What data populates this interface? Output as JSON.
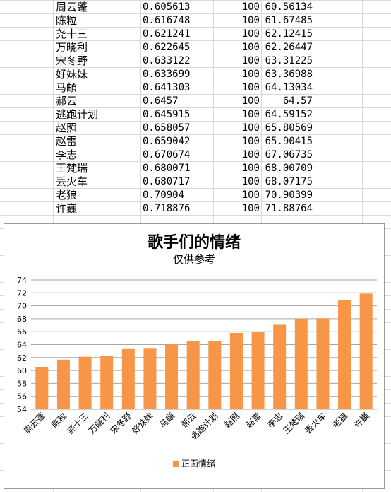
{
  "table": {
    "rows": [
      {
        "name": "周云蓬",
        "ratio": "0.605613",
        "count": "100",
        "score": "60.56134"
      },
      {
        "name": "陈粒",
        "ratio": "0.616748",
        "count": "100",
        "score": "61.67485"
      },
      {
        "name": "尧十三",
        "ratio": "0.621241",
        "count": "100",
        "score": "62.12415"
      },
      {
        "name": "万晓利",
        "ratio": "0.622645",
        "count": "100",
        "score": "62.26447"
      },
      {
        "name": "宋冬野",
        "ratio": "0.633122",
        "count": "100",
        "score": "63.31225"
      },
      {
        "name": "好妹妹",
        "ratio": "0.633699",
        "count": "100",
        "score": "63.36988"
      },
      {
        "name": "马頔",
        "ratio": "0.641303",
        "count": "100",
        "score": "64.13034"
      },
      {
        "name": "郝云",
        "ratio": "0.6457",
        "count": "100",
        "score": "64.57"
      },
      {
        "name": "逃跑计划",
        "ratio": "0.645915",
        "count": "100",
        "score": "64.59152"
      },
      {
        "name": "赵照",
        "ratio": "0.658057",
        "count": "100",
        "score": "65.80569"
      },
      {
        "name": "赵雷",
        "ratio": "0.659042",
        "count": "100",
        "score": "65.90415"
      },
      {
        "name": "李志",
        "ratio": "0.670674",
        "count": "100",
        "score": "67.06735"
      },
      {
        "name": "王梵瑞",
        "ratio": "0.680071",
        "count": "100",
        "score": "68.00709"
      },
      {
        "name": "丢火车",
        "ratio": "0.680717",
        "count": "100",
        "score": "68.07175"
      },
      {
        "name": "老狼",
        "ratio": "0.70904",
        "count": "100",
        "score": "70.90399"
      },
      {
        "name": "许巍",
        "ratio": "0.718876",
        "count": "100",
        "score": "71.88764"
      }
    ]
  },
  "chart_data": {
    "type": "bar",
    "title": "歌手们的情绪",
    "subtitle": "仅供参考",
    "categories": [
      "周云蓬",
      "陈粒",
      "尧十三",
      "万晓利",
      "宋冬野",
      "好妹妹",
      "马頔",
      "郝云",
      "逃跑计划",
      "赵照",
      "赵雷",
      "李志",
      "王梵瑞",
      "丢火车",
      "老狼",
      "许巍"
    ],
    "series": [
      {
        "name": "正面情绪",
        "values": [
          60.56134,
          61.67485,
          62.12415,
          62.26447,
          63.31225,
          63.36988,
          64.13034,
          64.57,
          64.59152,
          65.80569,
          65.90415,
          67.06735,
          68.00709,
          68.07175,
          70.90399,
          71.88764
        ],
        "color": "#f79646"
      }
    ],
    "yticks": [
      "74",
      "72",
      "70",
      "68",
      "66",
      "64",
      "62",
      "60",
      "58",
      "56",
      "54"
    ],
    "ylim": [
      54,
      74
    ],
    "grid": true,
    "legend": "bottom"
  }
}
